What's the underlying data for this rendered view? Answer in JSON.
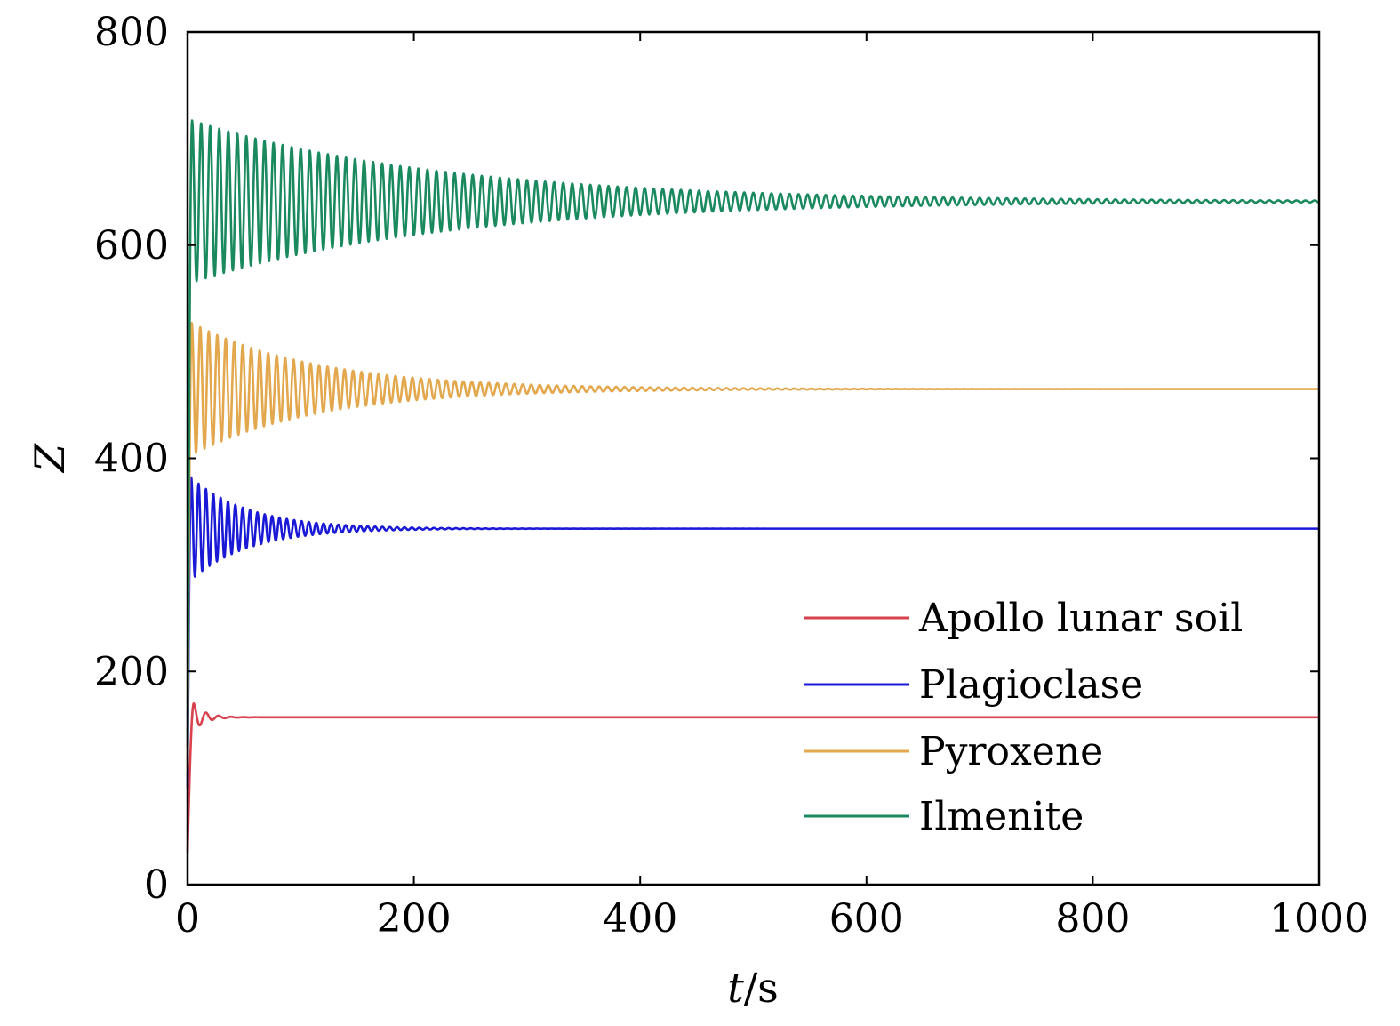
{
  "chart_data": {
    "type": "line",
    "xlabel_var": "t",
    "xlabel_unit": "/s",
    "ylabel": "Z",
    "xlim": [
      0,
      1000
    ],
    "ylim": [
      0,
      800
    ],
    "x_ticks": [
      0,
      200,
      400,
      600,
      800,
      1000
    ],
    "y_ticks": [
      0,
      200,
      400,
      600,
      800
    ],
    "grid": false,
    "legend_position": "bottom-right",
    "series": [
      {
        "name": "Apollo lunar soil",
        "color": "#d8414e",
        "start_value": 30,
        "steady_value": 157,
        "first_peak": 170,
        "period": 11,
        "settling_time": 45
      },
      {
        "name": "Plagioclase",
        "color": "#1a1ad6",
        "start_value": 90,
        "steady_value": 334,
        "first_peak": 382,
        "period": 6.5,
        "settling_time": 230
      },
      {
        "name": "Pyroxene",
        "color": "#e3a84e",
        "start_value": 110,
        "steady_value": 465,
        "first_peak": 527,
        "period": 7.5,
        "settling_time": 500
      },
      {
        "name": "Ilmenite",
        "color": "#1a8a5e",
        "start_value": 130,
        "steady_value": 641,
        "first_peak": 717,
        "period": 8,
        "settling_time": 1000
      }
    ]
  }
}
